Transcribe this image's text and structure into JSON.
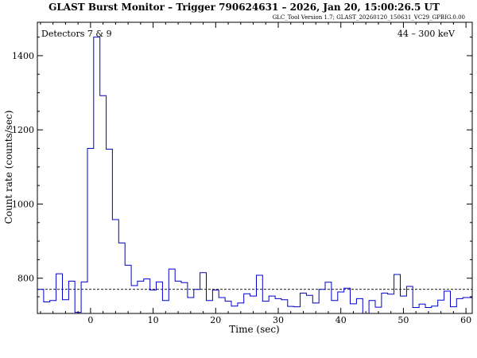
{
  "chart_data": {
    "type": "line",
    "style": "step",
    "title": "GLAST Burst Monitor  –  Trigger 790624631  –  2026, Jan 20, 15:00:26.5 UT",
    "subtitle": "GLC_Tool Version 1.7; GLAST_20260120_150631_VC29_GPBIG.0.00",
    "annotation_left": "Detectors 7 & 9",
    "annotation_right": "44 – 300 keV",
    "xlabel": "Time (sec)",
    "ylabel": "Count rate (counts/sec)",
    "xlim": [
      -8.5,
      61
    ],
    "ylim": [
      705,
      1490
    ],
    "x_ticks": [
      0,
      10,
      20,
      30,
      40,
      50,
      60
    ],
    "y_ticks": [
      800,
      1000,
      1200,
      1400
    ],
    "grid": false,
    "background_level": 770,
    "colors": {
      "series": "#0000cc",
      "axes": "#000000",
      "background_line": "#000000"
    },
    "series": [
      {
        "bin_width": 1.0,
        "bin_starts": [
          -8.5,
          -7.5,
          -6.5,
          -5.5,
          -4.5,
          -3.5,
          -2.5,
          -1.5,
          -0.5,
          0.5,
          1.5,
          2.5,
          3.5,
          4.5,
          5.5,
          6.5,
          7.5,
          8.5,
          9.5,
          10.5,
          11.5,
          12.5,
          13.5,
          14.5,
          15.5,
          16.5,
          17.5,
          18.5,
          19.5,
          20.5,
          21.5,
          22.5,
          23.5,
          24.5,
          25.5,
          26.5,
          27.5,
          28.5,
          29.5,
          30.5,
          31.5,
          32.5,
          33.5,
          34.5,
          35.5,
          36.5,
          37.5,
          38.5,
          39.5,
          40.5,
          41.5,
          42.5,
          43.5,
          44.5,
          45.5,
          46.5,
          47.5,
          48.5,
          49.5,
          50.5,
          51.5,
          52.5,
          53.5,
          54.5,
          55.5,
          56.5,
          57.5,
          58.5,
          59.5,
          60.5
        ],
        "values": [
          770,
          736,
          740,
          812,
          742,
          792,
          708,
          790,
          1150,
          1450,
          1292,
          1148,
          958,
          895,
          835,
          780,
          792,
          798,
          768,
          790,
          740,
          825,
          792,
          788,
          748,
          770,
          815,
          740,
          768,
          748,
          738,
          725,
          733,
          758,
          752,
          808,
          738,
          752,
          745,
          742,
          724,
          723,
          760,
          754,
          733,
          770,
          789,
          740,
          763,
          773,
          731,
          745,
          703,
          740,
          722,
          760,
          757,
          810,
          752,
          778,
          721,
          730,
          721,
          725,
          741,
          765,
          723,
          745,
          748,
          748
        ]
      }
    ]
  }
}
